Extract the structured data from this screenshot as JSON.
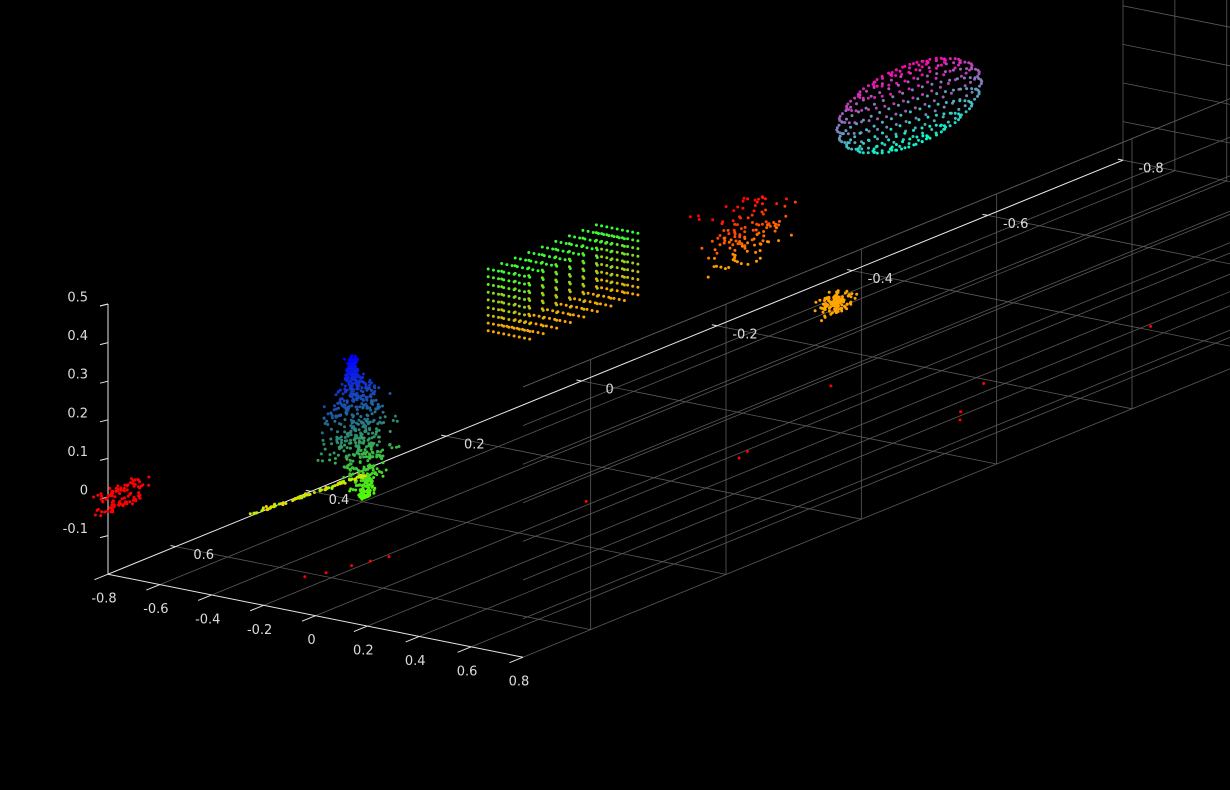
{
  "chart_data": {
    "type": "scatter",
    "subtype": "3d-point-cloud",
    "title": "",
    "xlabel": "",
    "ylabel": "",
    "zlabel": "",
    "background": "#000000",
    "grid": true,
    "axis_color": "#e6e6e6",
    "grid_color": "#5a5a5a",
    "colormap": "hsv (colored by cluster / height)",
    "axes": {
      "x": {
        "lim": [
          -0.8,
          0.8
        ],
        "ticks": [
          "-0.8",
          "-0.6",
          "-0.4",
          "-0.2",
          "0",
          "0.2",
          "0.4",
          "0.6",
          "0.8"
        ]
      },
      "y": {
        "lim": [
          -0.8,
          0.7
        ],
        "ticks": [
          "0.6",
          "0.4",
          "0.2",
          "0",
          "-0.2",
          "-0.4",
          "-0.6",
          "-0.8"
        ]
      },
      "z": {
        "lim": [
          -0.2,
          0.5
        ],
        "ticks": [
          "0.5",
          "0.4",
          "0.3",
          "0.2",
          "0.1",
          "0",
          "-0.1"
        ]
      }
    },
    "series": [
      {
        "shape": "sphere",
        "color_range": [
          "#ff00aa",
          "#00ffcc"
        ],
        "center": [
          -0.45,
          -0.35,
          0.31
        ],
        "radius": 0.1
      },
      {
        "shape": "cube",
        "color_range": [
          "#ffa500",
          "#33ff33"
        ],
        "center": [
          -0.35,
          0.2,
          0.26
        ],
        "size": 0.16
      },
      {
        "shape": "elongated-cluster",
        "color_range": [
          "#0000ff",
          "#55ff00"
        ],
        "center": [
          -0.2,
          0.55,
          0.15
        ]
      },
      {
        "shape": "small-cluster",
        "color_range": [
          "#33ff33",
          "#ffa500"
        ],
        "center": [
          0.55,
          -0.65,
          0.05
        ]
      },
      {
        "shape": "scattered-cloud",
        "color_range": [
          "#ff0000",
          "#ffa500"
        ],
        "center": [
          -0.35,
          -0.05,
          0.2
        ]
      },
      {
        "shape": "blob",
        "color": "#ffa500",
        "center": [
          0.05,
          -0.05,
          0.08
        ]
      },
      {
        "shape": "ground-cluster",
        "color": "#ff0000",
        "center": [
          -0.7,
          0.72,
          0.0
        ]
      },
      {
        "shape": "sparse-ground-points",
        "color": "#ff0000"
      }
    ]
  }
}
